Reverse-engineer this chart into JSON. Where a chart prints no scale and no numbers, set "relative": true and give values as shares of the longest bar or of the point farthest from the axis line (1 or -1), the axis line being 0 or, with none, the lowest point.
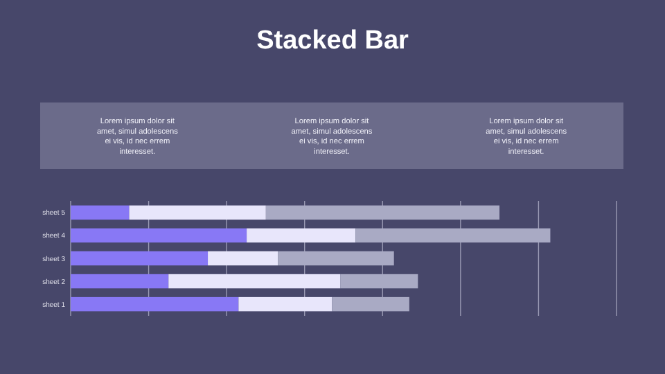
{
  "chart_data": {
    "type": "bar",
    "title": "Stacked Bar",
    "orientation": "horizontal",
    "stacked": true,
    "relative": true,
    "grid": true,
    "annotations": [
      "Lorem ipsum dolor sit amet, simul adolescens ei vis, id nec errem interesset.",
      "Lorem ipsum dolor sit amet, simul adolescens ei vis, id nec errem interesset.",
      "Lorem ipsum dolor sit amet, simul adolescens ei vis, id nec errem interesset."
    ],
    "categories": [
      "sheet 5",
      "sheet 4",
      "sheet 3",
      "sheet 2",
      "sheet 1"
    ],
    "series": [
      {
        "color": "#8878f5",
        "values": [
          0.122,
          0.367,
          0.286,
          0.204,
          0.35
        ]
      },
      {
        "color": "#e8e6fb",
        "values": [
          0.285,
          0.227,
          0.146,
          0.358,
          0.195
        ]
      },
      {
        "color": "#a9aac4",
        "values": [
          0.487,
          0.406,
          0.242,
          0.162,
          0.161
        ]
      }
    ]
  }
}
